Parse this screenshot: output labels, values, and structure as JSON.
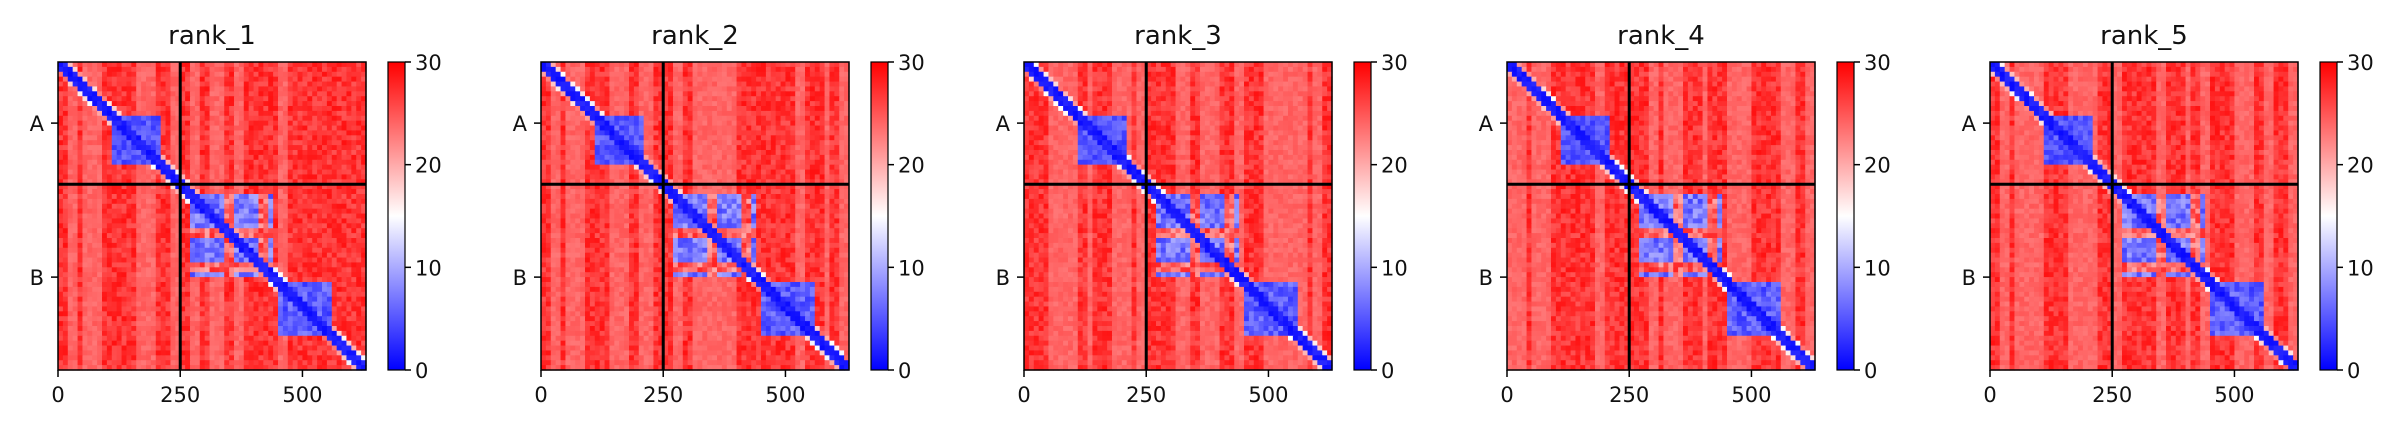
{
  "chart_data": {
    "type": "heatmap",
    "colormap": {
      "low": "#0000ff",
      "mid": "#ffffff",
      "high": "#ff0000",
      "range": [
        0,
        30
      ]
    },
    "colorbar_ticks": [
      0,
      10,
      20,
      30
    ],
    "x_ticks": [
      0,
      250,
      500
    ],
    "x_range": [
      0,
      630
    ],
    "chain_breaks": [
      250
    ],
    "chain_labels": [
      "A",
      "B"
    ],
    "panels": [
      {
        "title": "rank_1",
        "variant": 1
      },
      {
        "title": "rank_2",
        "variant": 2
      },
      {
        "title": "rank_3",
        "variant": 3
      },
      {
        "title": "rank_4",
        "variant": 4
      },
      {
        "title": "rank_5",
        "variant": 5
      }
    ]
  }
}
